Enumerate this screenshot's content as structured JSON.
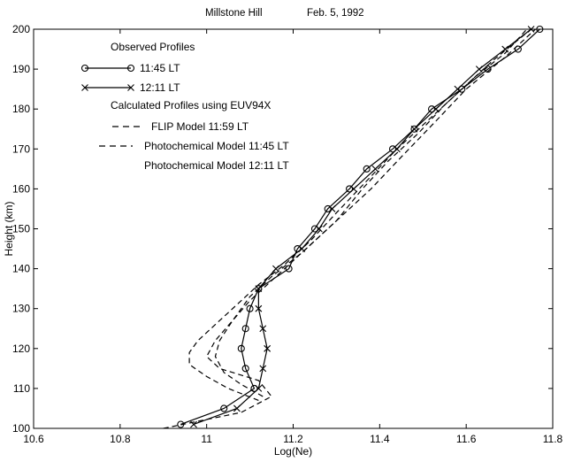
{
  "chart_data": {
    "type": "line",
    "title_left": "Millstone Hill",
    "title_right": "Feb. 5, 1992",
    "xlabel": "Log(Ne)",
    "ylabel": "Height (km)",
    "xlim": [
      10.6,
      11.8
    ],
    "ylim": [
      100,
      200
    ],
    "xticks": [
      10.6,
      10.8,
      11,
      11.2,
      11.4,
      11.6,
      11.8
    ],
    "xtick_labels": [
      "10.6",
      "10.8",
      "11",
      "11.2",
      "11.4",
      "11.6",
      "11.8"
    ],
    "yticks": [
      100,
      110,
      120,
      130,
      140,
      150,
      160,
      170,
      180,
      190,
      200
    ],
    "ytick_labels": [
      "100",
      "110",
      "120",
      "130",
      "140",
      "150",
      "160",
      "170",
      "180",
      "190",
      "200"
    ],
    "grid": false,
    "legend_position": "top-left",
    "legend_headers": [
      "Observed Profiles",
      "Calculated Profiles using EUV94X"
    ],
    "series": [
      {
        "name": "11:45 LT",
        "style": "solid",
        "marker": "circle",
        "color": "#000000",
        "points": [
          [
            10.94,
            101
          ],
          [
            11.04,
            105
          ],
          [
            11.11,
            110
          ],
          [
            11.09,
            115
          ],
          [
            11.08,
            120
          ],
          [
            11.09,
            125
          ],
          [
            11.1,
            130
          ],
          [
            11.12,
            135
          ],
          [
            11.19,
            140
          ],
          [
            11.21,
            145
          ],
          [
            11.25,
            150
          ],
          [
            11.28,
            155
          ],
          [
            11.33,
            160
          ],
          [
            11.37,
            165
          ],
          [
            11.43,
            170
          ],
          [
            11.48,
            175
          ],
          [
            11.52,
            180
          ],
          [
            11.59,
            185
          ],
          [
            11.65,
            190
          ],
          [
            11.72,
            195
          ],
          [
            11.77,
            200
          ]
        ]
      },
      {
        "name": "12:11 LT",
        "style": "solid",
        "marker": "x",
        "color": "#000000",
        "points": [
          [
            10.97,
            101
          ],
          [
            11.07,
            105
          ],
          [
            11.12,
            110
          ],
          [
            11.13,
            115
          ],
          [
            11.14,
            120
          ],
          [
            11.13,
            125
          ],
          [
            11.12,
            130
          ],
          [
            11.12,
            135
          ],
          [
            11.16,
            140
          ],
          [
            11.22,
            145
          ],
          [
            11.26,
            150
          ],
          [
            11.29,
            155
          ],
          [
            11.34,
            160
          ],
          [
            11.39,
            165
          ],
          [
            11.44,
            170
          ],
          [
            11.48,
            175
          ],
          [
            11.53,
            180
          ],
          [
            11.58,
            185
          ],
          [
            11.63,
            190
          ],
          [
            11.69,
            195
          ],
          [
            11.75,
            200
          ]
        ]
      },
      {
        "name": "FLIP Model 11:59 LT",
        "style": "dashed",
        "marker": "none",
        "color": "#000000",
        "points": [
          [
            10.9,
            100
          ],
          [
            11.08,
            104
          ],
          [
            11.15,
            108
          ],
          [
            11.12,
            112
          ],
          [
            11.03,
            115
          ],
          [
            11.0,
            118
          ],
          [
            11.02,
            122
          ],
          [
            11.06,
            127
          ],
          [
            11.1,
            133
          ],
          [
            11.15,
            138
          ],
          [
            11.22,
            144
          ],
          [
            11.3,
            152
          ],
          [
            11.36,
            160
          ],
          [
            11.42,
            167
          ],
          [
            11.49,
            174
          ],
          [
            11.55,
            181
          ],
          [
            11.62,
            188
          ],
          [
            11.69,
            194
          ],
          [
            11.74,
            200
          ]
        ]
      },
      {
        "name": "Photochemical Model 11:45 LT",
        "style": "dashed",
        "marker": "none",
        "color": "#000000",
        "points": [
          [
            11.12,
            107
          ],
          [
            11.05,
            110
          ],
          [
            11.0,
            113
          ],
          [
            10.96,
            116
          ],
          [
            10.96,
            119
          ],
          [
            10.98,
            122
          ],
          [
            11.02,
            126
          ],
          [
            11.07,
            131
          ],
          [
            11.12,
            136
          ],
          [
            11.18,
            141
          ],
          [
            11.24,
            147
          ],
          [
            11.3,
            154
          ],
          [
            11.37,
            162
          ],
          [
            11.44,
            170
          ],
          [
            11.51,
            177
          ],
          [
            11.58,
            184
          ],
          [
            11.66,
            192
          ],
          [
            11.75,
            200
          ]
        ]
      },
      {
        "name": "Photochemical Model 12:11 LT",
        "style": "dashed",
        "marker": "none",
        "color": "#000000",
        "points": [
          [
            11.13,
            108
          ],
          [
            11.08,
            111
          ],
          [
            11.04,
            114
          ],
          [
            11.02,
            118
          ],
          [
            11.03,
            122
          ],
          [
            11.06,
            127
          ],
          [
            11.1,
            132
          ],
          [
            11.16,
            138
          ],
          [
            11.23,
            145
          ],
          [
            11.3,
            152
          ],
          [
            11.38,
            160
          ],
          [
            11.45,
            168
          ],
          [
            11.53,
            177
          ],
          [
            11.6,
            185
          ],
          [
            11.69,
            193
          ],
          [
            11.76,
            200
          ]
        ]
      }
    ]
  }
}
